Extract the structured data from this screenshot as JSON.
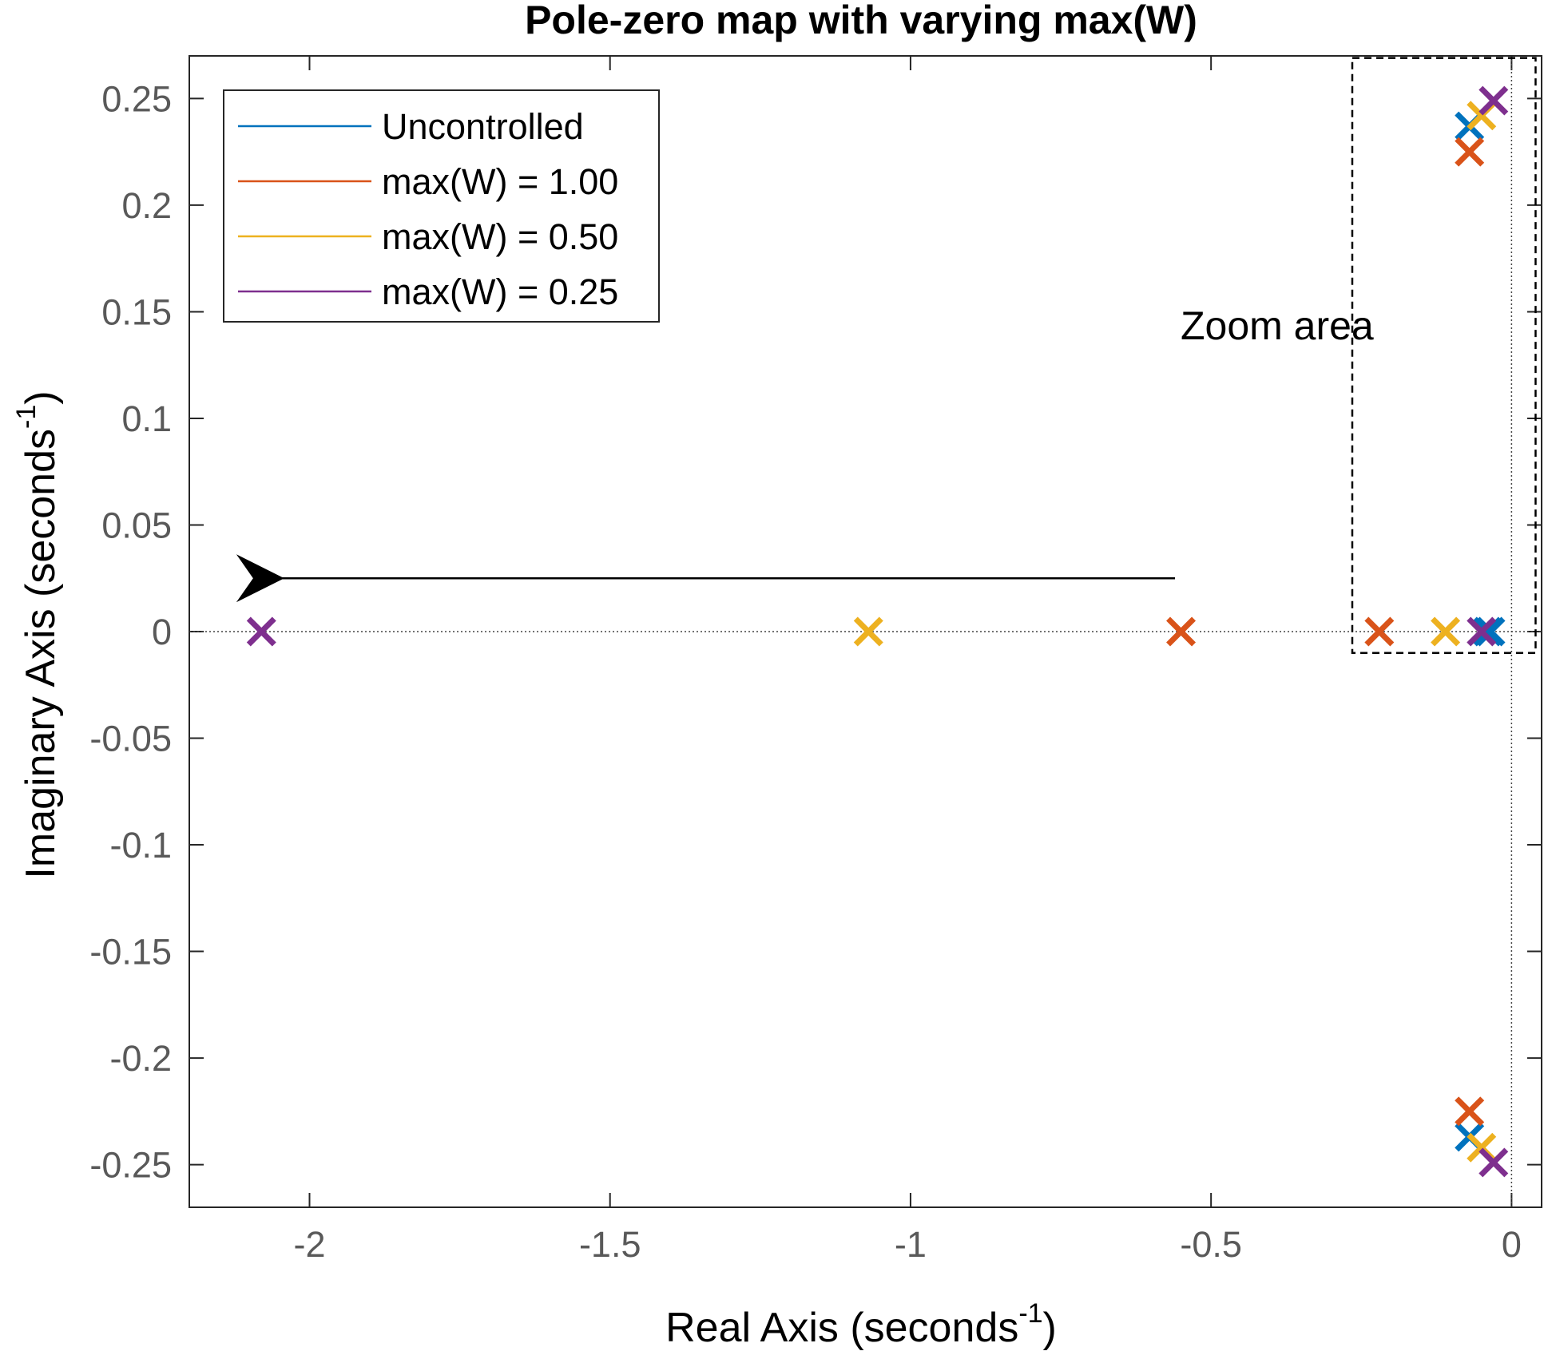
{
  "chart_data": {
    "type": "scatter",
    "title": "Pole-zero map with varying max(W)",
    "xlabel_main": "Real Axis (seconds",
    "xlabel_sup": "-1",
    "xlabel_tail": ")",
    "ylabel_main": "Imaginary Axis (seconds",
    "ylabel_sup": "-1",
    "ylabel_tail": ")",
    "xlim": [
      -2.2,
      0.05
    ],
    "ylim": [
      -0.27,
      0.27
    ],
    "x_ticks": [
      -2,
      -1.5,
      -1,
      -0.5,
      0
    ],
    "x_tick_labels": [
      "-2",
      "-1.5",
      "-1",
      "-0.5",
      "0"
    ],
    "y_ticks": [
      0.25,
      0.2,
      0.15,
      0.1,
      0.05,
      0,
      -0.05,
      -0.1,
      -0.15,
      -0.2,
      -0.25
    ],
    "y_tick_labels": [
      "0.25",
      "0.2",
      "0.15",
      "0.1",
      "0.05",
      "0",
      "-0.05",
      "-0.1",
      "-0.15",
      "-0.2",
      "-0.25"
    ],
    "marker": "x",
    "legend_position": "top-left",
    "series": [
      {
        "name": "Uncontrolled",
        "color": "#0072BD",
        "points": [
          [
            -0.07,
            0.237
          ],
          [
            -0.07,
            -0.237
          ],
          [
            -0.035,
            0
          ],
          [
            -0.04,
            0
          ]
        ]
      },
      {
        "name": "max(W) = 1.00",
        "color": "#D95319",
        "points": [
          [
            -0.07,
            0.225
          ],
          [
            -0.07,
            -0.225
          ],
          [
            -0.55,
            0
          ],
          [
            -0.22,
            0
          ]
        ]
      },
      {
        "name": "max(W) = 0.50",
        "color": "#EDB120",
        "points": [
          [
            -0.05,
            0.242
          ],
          [
            -0.05,
            -0.242
          ],
          [
            -1.07,
            0
          ],
          [
            -0.11,
            0
          ]
        ]
      },
      {
        "name": "max(W) = 0.25",
        "color": "#7E2F8E",
        "points": [
          [
            -0.03,
            0.249
          ],
          [
            -0.03,
            -0.249
          ],
          [
            -2.08,
            0
          ],
          [
            -0.05,
            0
          ]
        ]
      }
    ],
    "annotations": {
      "zoom_label": "Zoom area",
      "zoom_box": {
        "x": [
          -0.265,
          0.04
        ],
        "y": [
          -0.01,
          0.269
        ]
      },
      "arrow": {
        "from": [
          -0.56,
          0.025
        ],
        "to": [
          -2.05,
          0.025
        ]
      }
    },
    "reference_lines": {
      "x": 0,
      "y": 0,
      "style": "dotted"
    }
  }
}
